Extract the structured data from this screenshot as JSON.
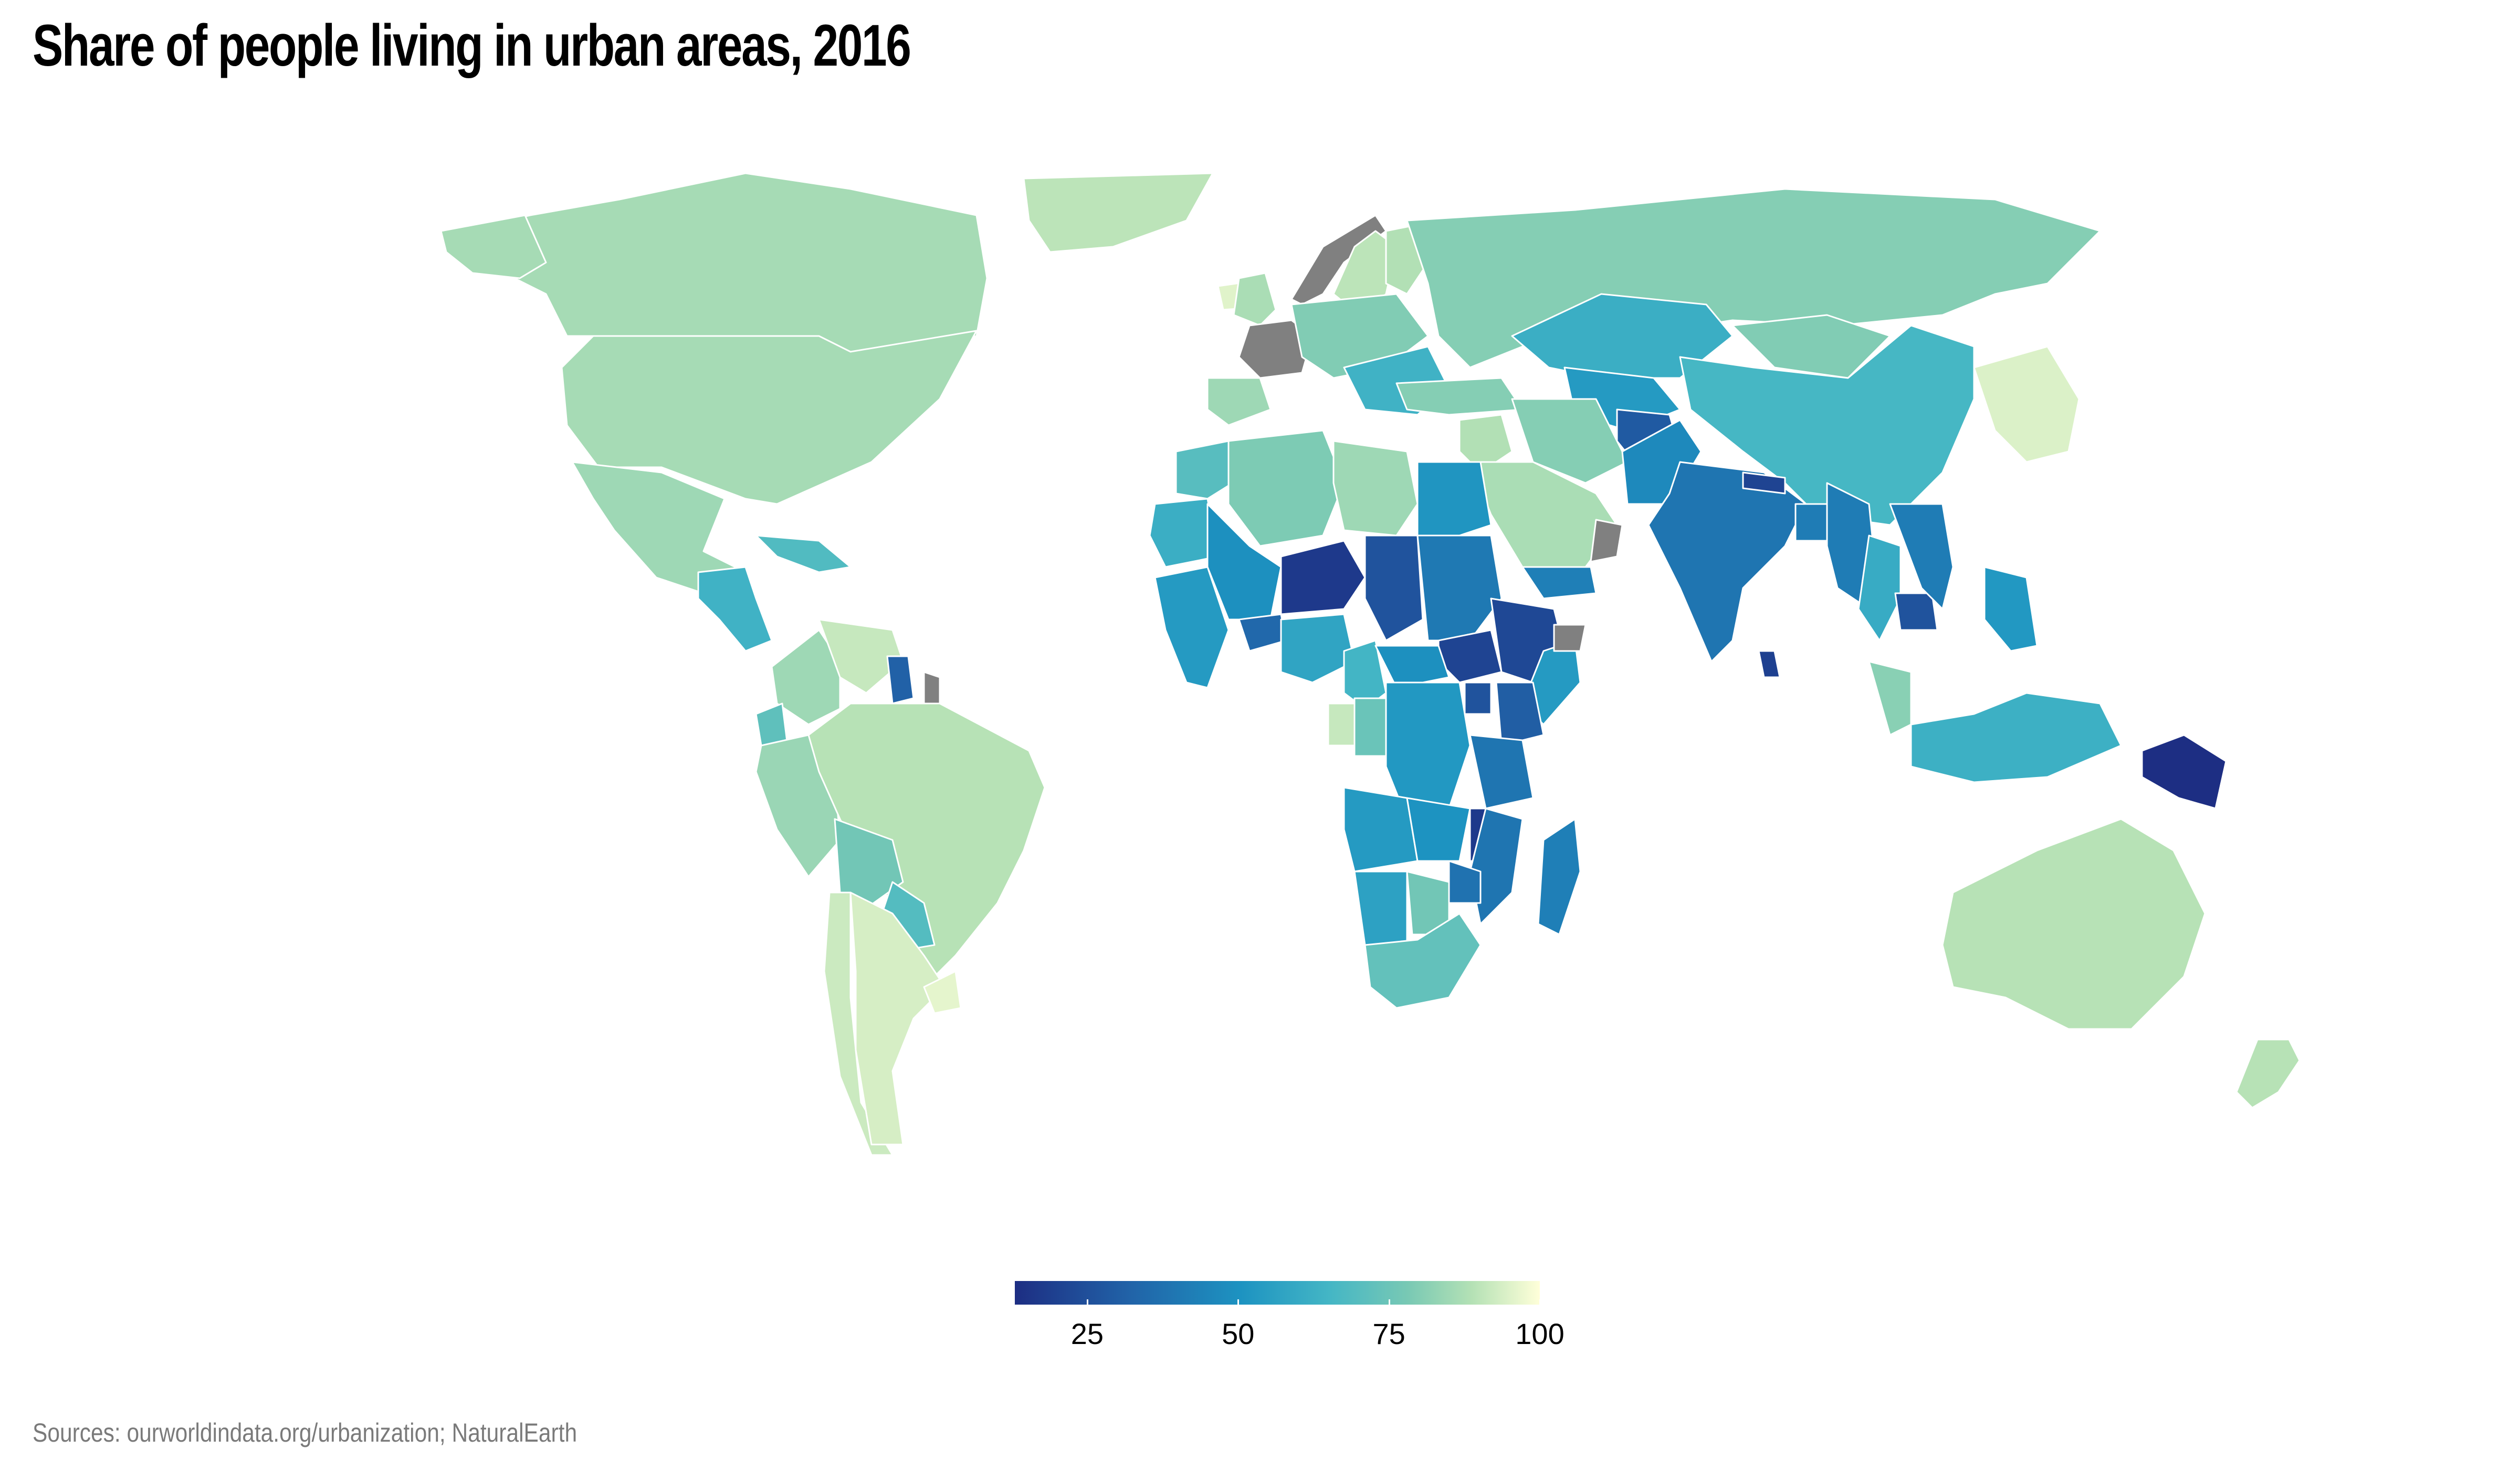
{
  "title": "Share of people living in urban areas, 2016",
  "source": "Sources: ourworldindata.org/urbanization; NaturalEarth",
  "legend": {
    "ticks": [
      {
        "value": 25,
        "label": "25"
      },
      {
        "value": 50,
        "label": "50"
      },
      {
        "value": 75,
        "label": "75"
      },
      {
        "value": 100,
        "label": "100"
      }
    ],
    "min": 13,
    "max": 100,
    "colors": [
      "#1d2e83",
      "#2163a8",
      "#1d93c1",
      "#44b6c5",
      "#79c9b4",
      "#b4e1b5",
      "#ffffd9"
    ],
    "missing_color": "#808080"
  },
  "regions": [
    {
      "name": "Greenland",
      "value": 87
    },
    {
      "name": "Canada",
      "value": 82
    },
    {
      "name": "United States",
      "value": 82
    },
    {
      "name": "Alaska",
      "value": 82
    },
    {
      "name": "Mexico",
      "value": 80
    },
    {
      "name": "Central America",
      "value": 55
    },
    {
      "name": "Caribbean",
      "value": 60
    },
    {
      "name": "Colombia",
      "value": 80
    },
    {
      "name": "Venezuela",
      "value": 89
    },
    {
      "name": "Guyana",
      "value": 27
    },
    {
      "name": "French Guiana",
      "value": null
    },
    {
      "name": "Ecuador",
      "value": 64
    },
    {
      "name": "Peru",
      "value": 79
    },
    {
      "name": "Brazil",
      "value": 86
    },
    {
      "name": "Bolivia",
      "value": 69
    },
    {
      "name": "Paraguay",
      "value": 61
    },
    {
      "name": "Chile",
      "value": 90
    },
    {
      "name": "Argentina",
      "value": 92
    },
    {
      "name": "Uruguay",
      "value": 95
    },
    {
      "name": "Iceland",
      "value": 94
    },
    {
      "name": "Norway",
      "value": null
    },
    {
      "name": "Sweden",
      "value": 87
    },
    {
      "name": "Finland",
      "value": 85
    },
    {
      "name": "United Kingdom",
      "value": 83
    },
    {
      "name": "France",
      "value": null
    },
    {
      "name": "Spain",
      "value": 80
    },
    {
      "name": "Central Europe",
      "value": 73
    },
    {
      "name": "Balkans",
      "value": 55
    },
    {
      "name": "Russia",
      "value": 74
    },
    {
      "name": "Kazakhstan",
      "value": 53
    },
    {
      "name": "Central Asia",
      "value": 45
    },
    {
      "name": "Mongolia",
      "value": 73
    },
    {
      "name": "China",
      "value": 57
    },
    {
      "name": "Korea and Japan",
      "value": 93
    },
    {
      "name": "Turkey",
      "value": 74
    },
    {
      "name": "Middle East",
      "value": 85
    },
    {
      "name": "Iran",
      "value": 74
    },
    {
      "name": "Saudi Arabia",
      "value": 83
    },
    {
      "name": "Yemen",
      "value": 36
    },
    {
      "name": "Oman",
      "value": null
    },
    {
      "name": "Afghanistan",
      "value": 25
    },
    {
      "name": "Pakistan",
      "value": 39
    },
    {
      "name": "India",
      "value": 33
    },
    {
      "name": "Nepal",
      "value": 19
    },
    {
      "name": "Bangladesh",
      "value": 35
    },
    {
      "name": "Myanmar",
      "value": 35
    },
    {
      "name": "Thailand",
      "value": 52
    },
    {
      "name": "Cambodia",
      "value": 23
    },
    {
      "name": "Vietnam",
      "value": 35
    },
    {
      "name": "Sri Lanka",
      "value": 18
    },
    {
      "name": "Malaysia",
      "value": 75
    },
    {
      "name": "Philippines",
      "value": 44
    },
    {
      "name": "Indonesia",
      "value": 54
    },
    {
      "name": "Papua New Guinea",
      "value": 13
    },
    {
      "name": "Australia",
      "value": 86
    },
    {
      "name": "New Zealand",
      "value": 86
    },
    {
      "name": "Morocco",
      "value": 62
    },
    {
      "name": "Algeria",
      "value": 72
    },
    {
      "name": "Libya",
      "value": 80
    },
    {
      "name": "Egypt",
      "value": 43
    },
    {
      "name": "Mauritania",
      "value": 53
    },
    {
      "name": "Mali",
      "value": 41
    },
    {
      "name": "Niger",
      "value": 16
    },
    {
      "name": "Chad",
      "value": 23
    },
    {
      "name": "Sudan",
      "value": 34
    },
    {
      "name": "South Sudan",
      "value": 19
    },
    {
      "name": "Ethiopia",
      "value": 20
    },
    {
      "name": "Somalia",
      "value": 45
    },
    {
      "name": "Somaliland",
      "value": null
    },
    {
      "name": "West Africa coast",
      "value": 45
    },
    {
      "name": "Burkina Faso",
      "value": 29
    },
    {
      "name": "Nigeria",
      "value": 49
    },
    {
      "name": "Cameroon",
      "value": 56
    },
    {
      "name": "Central African Republic",
      "value": 41
    },
    {
      "name": "Gabon",
      "value": 89
    },
    {
      "name": "Congo",
      "value": 67
    },
    {
      "name": "DR Congo",
      "value": 44
    },
    {
      "name": "Uganda",
      "value": 23
    },
    {
      "name": "Kenya",
      "value": 26
    },
    {
      "name": "Tanzania",
      "value": 33
    },
    {
      "name": "Angola",
      "value": 45
    },
    {
      "name": "Zambia",
      "value": 42
    },
    {
      "name": "Malawi",
      "value": 16
    },
    {
      "name": "Mozambique",
      "value": 33
    },
    {
      "name": "Madagascar",
      "value": 36
    },
    {
      "name": "Namibia",
      "value": 48
    },
    {
      "name": "Botswana",
      "value": 69
    },
    {
      "name": "Zimbabwe",
      "value": 32
    },
    {
      "name": "South Africa",
      "value": 65
    }
  ]
}
